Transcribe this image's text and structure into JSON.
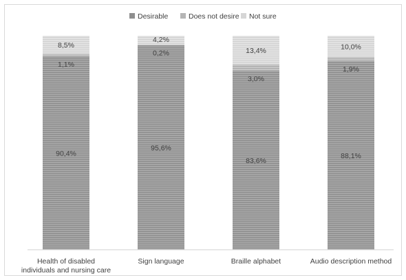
{
  "chart_data": {
    "type": "bar",
    "stacked": true,
    "percent_stacked": true,
    "categories": [
      [
        "Health of disabled",
        "individuals and nursing care"
      ],
      [
        "Sign language"
      ],
      [
        "Braille alphabet"
      ],
      [
        "Audio description method"
      ]
    ],
    "series": [
      {
        "name": "Desirable",
        "values": [
          90.4,
          95.6,
          83.6,
          88.1
        ],
        "labels": [
          "90,4%",
          "95,6%",
          "83,6%",
          "88,1%"
        ],
        "color": "#9a9a9a"
      },
      {
        "name": "Does not desire",
        "values": [
          1.1,
          0.2,
          3.0,
          1.9
        ],
        "labels": [
          "1,1%",
          "0,2%",
          "3,0%",
          "1,9%"
        ],
        "color": "#bdbdbd"
      },
      {
        "name": "Not sure",
        "values": [
          8.5,
          4.2,
          13.4,
          10.0
        ],
        "labels": [
          "8,5%",
          "4,2%",
          "13,4%",
          "10,0%"
        ],
        "color": "#dcdcdc"
      }
    ],
    "ylim": [
      0,
      100
    ],
    "legend_position": "top",
    "grid": false,
    "title": "",
    "xlabel": "",
    "ylabel": ""
  }
}
